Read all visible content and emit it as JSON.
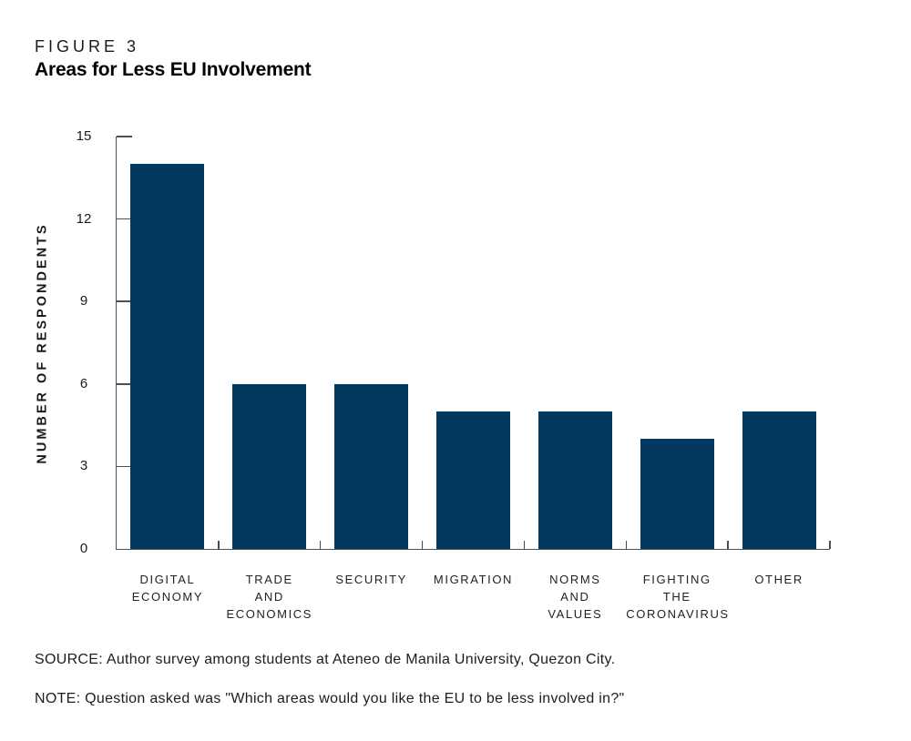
{
  "figure_label": "FIGURE 3",
  "title": "Areas for Less EU Involvement",
  "chart_data": {
    "type": "bar",
    "title": "Areas for Less EU Involvement",
    "categories": [
      "DIGITAL\nECONOMY",
      "TRADE\nAND\nECONOMICS",
      "SECURITY",
      "MIGRATION",
      "NORMS\nAND\nVALUES",
      "FIGHTING\nTHE\nCORONAVIRUS",
      "OTHER"
    ],
    "values": [
      14,
      6,
      6,
      5,
      5,
      4,
      5
    ],
    "xlabel": "",
    "ylabel": "NUMBER OF RESPONDENTS",
    "yticks": [
      0,
      3,
      6,
      9,
      12,
      15
    ],
    "ylim": [
      0,
      15
    ],
    "grid": false,
    "legend": "none",
    "bar_color": "#04395F",
    "axis_color": "#4f4f4f"
  },
  "source": "SOURCE: Author survey among students at Ateneo de Manila University, Quezon City.",
  "note": "NOTE: Question asked was \"Which areas would you like the EU to be less involved in?\""
}
